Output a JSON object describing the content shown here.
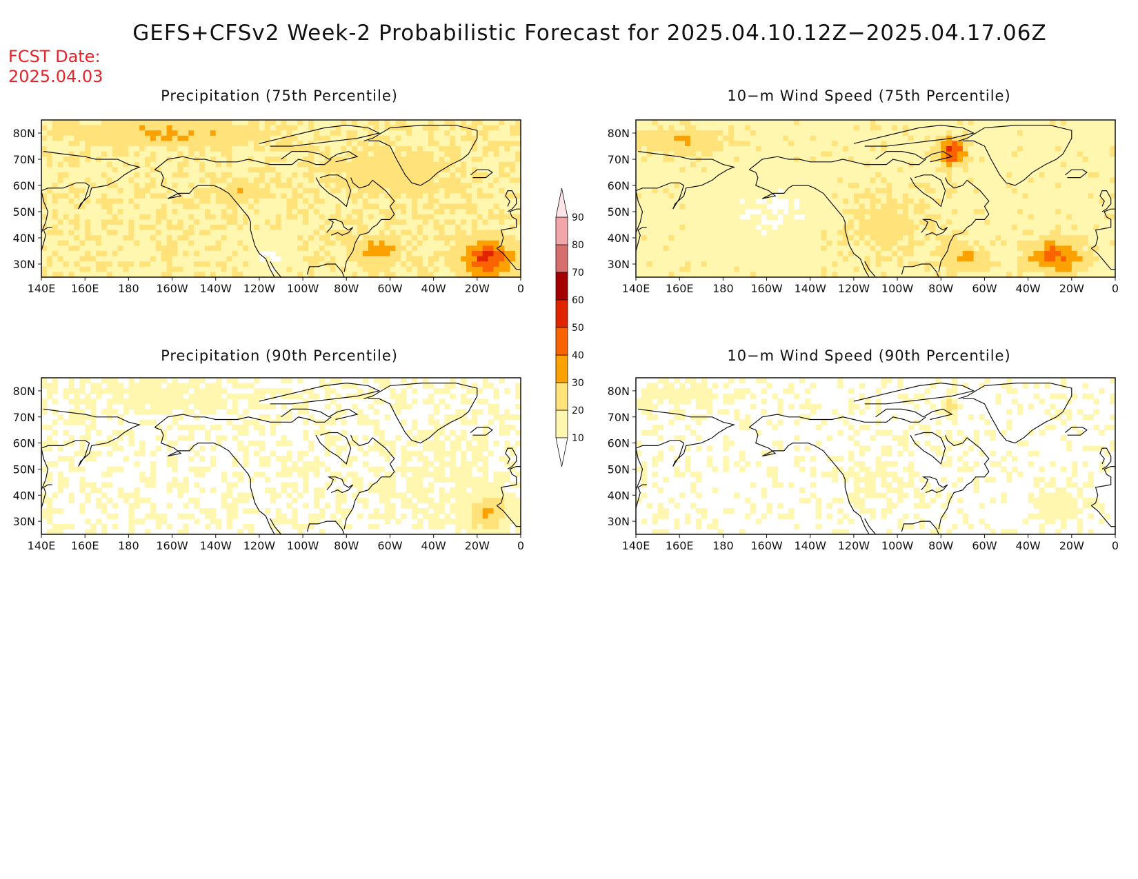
{
  "title": "GEFS+CFSv2 Week-2 Probabilistic Forecast for 2025.04.10.12Z−2025.04.17.06Z",
  "fcst_label": "FCST Date:",
  "fcst_date": "2025.04.03",
  "panels": [
    {
      "id": "precip75",
      "title": "Precipitation (75th Percentile)",
      "variable": "precipitation",
      "percentile": 75
    },
    {
      "id": "wind75",
      "title": "10−m Wind Speed (75th Percentile)",
      "variable": "wind",
      "percentile": 75
    },
    {
      "id": "precip90",
      "title": "Precipitation (90th Percentile)",
      "variable": "precipitation",
      "percentile": 90
    },
    {
      "id": "wind90",
      "title": "10−m Wind Speed (90th Percentile)",
      "variable": "wind",
      "percentile": 90
    }
  ],
  "lat_ticks": [
    "30N",
    "40N",
    "50N",
    "60N",
    "70N",
    "80N"
  ],
  "lat_values": [
    30,
    40,
    50,
    60,
    70,
    80
  ],
  "lon_ticks": [
    "140E",
    "160E",
    "180",
    "160W",
    "140W",
    "120W",
    "100W",
    "80W",
    "60W",
    "40W",
    "20W",
    "0"
  ],
  "extent": {
    "lon_min": 140,
    "lon_max": 360,
    "lat_min": 25,
    "lat_max": 85
  },
  "colorbar": {
    "levels": [
      "10",
      "20",
      "30",
      "40",
      "50",
      "60",
      "70",
      "80",
      "90"
    ],
    "colors": [
      "#fff7b0",
      "#ffe27a",
      "#fba200",
      "#fb6200",
      "#e12400",
      "#a40000",
      "#d76e6e",
      "#f3a6aa",
      "#fde4e6"
    ]
  }
}
